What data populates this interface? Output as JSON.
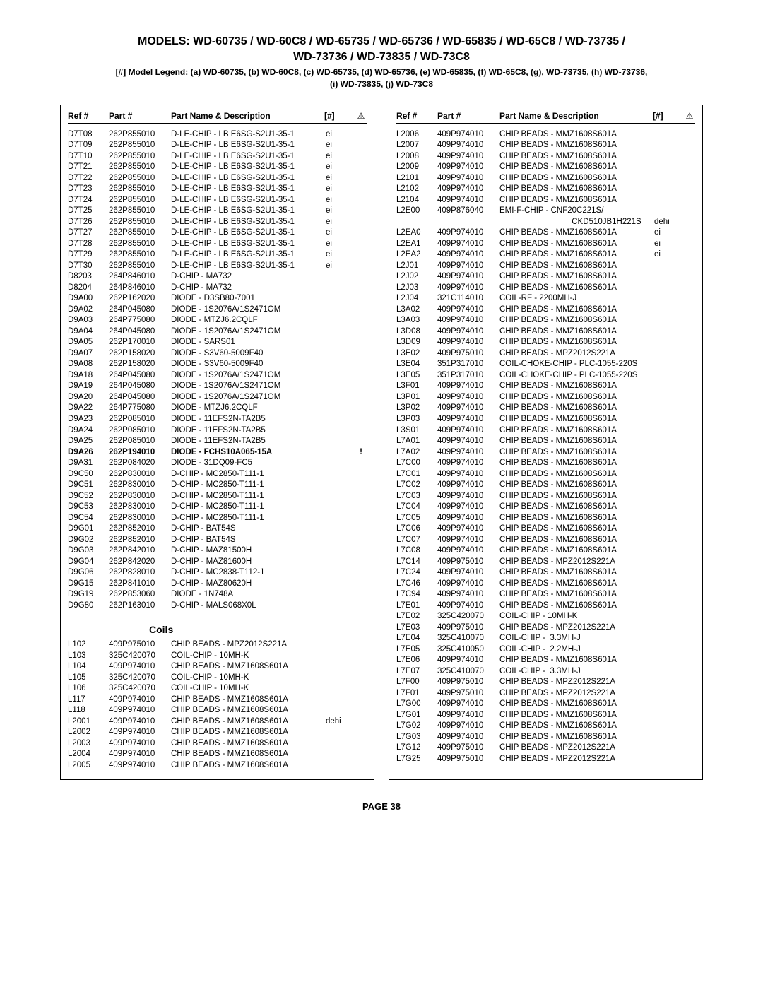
{
  "title_line1": "MODELS: WD-60735 / WD-60C8 / WD-65735 / WD-65736 / WD-65835 / WD-65C8 / WD-73735 /",
  "title_line2": "WD-73736  /  WD-73835 / WD-73C8",
  "legend_line1": "[#] Model Legend: (a) WD-60735, (b) WD-60C8, (c) WD-65735, (d) WD-65736, (e) WD-65835, (f) WD-65C8, (g), WD-73735, (h) WD-73736,",
  "legend_line2": "(i) WD-73835, (j) WD-73C8",
  "headers": {
    "ref": "Ref #",
    "part": "Part #",
    "desc": "Part Name & Description",
    "model": "[#]",
    "warn": "⚠"
  },
  "section_coils": "Coils",
  "page": "PAGE 38",
  "left_top": [
    {
      "r": "D7T08",
      "p": "262P855010",
      "d": "D-LE-CHIP - LB E6SG-S2U1-35-1",
      "m": "ei"
    },
    {
      "r": "D7T09",
      "p": "262P855010",
      "d": "D-LE-CHIP - LB E6SG-S2U1-35-1",
      "m": "ei"
    },
    {
      "r": "D7T10",
      "p": "262P855010",
      "d": "D-LE-CHIP - LB E6SG-S2U1-35-1",
      "m": "ei"
    },
    {
      "r": "D7T21",
      "p": "262P855010",
      "d": "D-LE-CHIP - LB E6SG-S2U1-35-1",
      "m": "ei"
    },
    {
      "r": "D7T22",
      "p": "262P855010",
      "d": "D-LE-CHIP - LB E6SG-S2U1-35-1",
      "m": "ei"
    },
    {
      "r": "D7T23",
      "p": "262P855010",
      "d": "D-LE-CHIP - LB E6SG-S2U1-35-1",
      "m": "ei"
    },
    {
      "r": "D7T24",
      "p": "262P855010",
      "d": "D-LE-CHIP - LB E6SG-S2U1-35-1",
      "m": "ei"
    },
    {
      "r": "D7T25",
      "p": "262P855010",
      "d": "D-LE-CHIP - LB E6SG-S2U1-35-1",
      "m": "ei"
    },
    {
      "r": "D7T26",
      "p": "262P855010",
      "d": "D-LE-CHIP - LB E6SG-S2U1-35-1",
      "m": "ei"
    },
    {
      "r": "D7T27",
      "p": "262P855010",
      "d": "D-LE-CHIP - LB E6SG-S2U1-35-1",
      "m": "ei"
    },
    {
      "r": "D7T28",
      "p": "262P855010",
      "d": "D-LE-CHIP - LB E6SG-S2U1-35-1",
      "m": "ei"
    },
    {
      "r": "D7T29",
      "p": "262P855010",
      "d": "D-LE-CHIP - LB E6SG-S2U1-35-1",
      "m": "ei"
    },
    {
      "r": "D7T30",
      "p": "262P855010",
      "d": "D-LE-CHIP - LB E6SG-S2U1-35-1",
      "m": "ei"
    },
    {
      "r": "D8203",
      "p": "264P846010",
      "d": "D-CHIP - MA732",
      "m": ""
    },
    {
      "r": "D8204",
      "p": "264P846010",
      "d": "D-CHIP - MA732",
      "m": ""
    },
    {
      "r": "D9A00",
      "p": "262P162020",
      "d": "DIODE - D3SB80-7001",
      "m": ""
    },
    {
      "r": "D9A02",
      "p": "264P045080",
      "d": "DIODE - 1S2076A/1S2471OM",
      "m": ""
    },
    {
      "r": "D9A03",
      "p": "264P775080",
      "d": "DIODE - MTZJ6.2CQLF",
      "m": ""
    },
    {
      "r": "D9A04",
      "p": "264P045080",
      "d": "DIODE - 1S2076A/1S2471OM",
      "m": ""
    },
    {
      "r": "D9A05",
      "p": "262P170010",
      "d": "DIODE - SARS01",
      "m": ""
    },
    {
      "r": "D9A07",
      "p": "262P158020",
      "d": "DIODE - S3V60-5009F40",
      "m": ""
    },
    {
      "r": "D9A08",
      "p": "262P158020",
      "d": "DIODE - S3V60-5009F40",
      "m": ""
    },
    {
      "r": "D9A18",
      "p": "264P045080",
      "d": "DIODE - 1S2076A/1S2471OM",
      "m": ""
    },
    {
      "r": "D9A19",
      "p": "264P045080",
      "d": "DIODE - 1S2076A/1S2471OM",
      "m": ""
    },
    {
      "r": "D9A20",
      "p": "264P045080",
      "d": "DIODE - 1S2076A/1S2471OM",
      "m": ""
    },
    {
      "r": "D9A22",
      "p": "264P775080",
      "d": "DIODE - MTZJ6.2CQLF",
      "m": ""
    },
    {
      "r": "D9A23",
      "p": "262P085010",
      "d": "DIODE - 11EFS2N-TA2B5",
      "m": ""
    },
    {
      "r": "D9A24",
      "p": "262P085010",
      "d": "DIODE - 11EFS2N-TA2B5",
      "m": ""
    },
    {
      "r": "D9A25",
      "p": "262P085010",
      "d": "DIODE - 11EFS2N-TA2B5",
      "m": ""
    },
    {
      "r": "D9A26",
      "p": "262P194010",
      "d": "DIODE - FCHS10A065-15A",
      "m": "",
      "w": "!",
      "b": true
    },
    {
      "r": "D9A31",
      "p": "262P084020",
      "d": "DIODE - 31DQ09-FC5",
      "m": ""
    },
    {
      "r": "D9C50",
      "p": "262P830010",
      "d": "D-CHIP - MC2850-T111-1",
      "m": ""
    },
    {
      "r": "D9C51",
      "p": "262P830010",
      "d": "D-CHIP - MC2850-T111-1",
      "m": ""
    },
    {
      "r": "D9C52",
      "p": "262P830010",
      "d": "D-CHIP - MC2850-T111-1",
      "m": ""
    },
    {
      "r": "D9C53",
      "p": "262P830010",
      "d": "D-CHIP - MC2850-T111-1",
      "m": ""
    },
    {
      "r": "D9C54",
      "p": "262P830010",
      "d": "D-CHIP - MC2850-T111-1",
      "m": ""
    },
    {
      "r": "D9G01",
      "p": "262P852010",
      "d": "D-CHIP - BAT54S",
      "m": ""
    },
    {
      "r": "D9G02",
      "p": "262P852010",
      "d": "D-CHIP - BAT54S",
      "m": ""
    },
    {
      "r": "D9G03",
      "p": "262P842010",
      "d": "D-CHIP - MAZ81500H",
      "m": ""
    },
    {
      "r": "D9G04",
      "p": "262P842020",
      "d": "D-CHIP - MAZ81600H",
      "m": ""
    },
    {
      "r": "D9G06",
      "p": "262P828010",
      "d": "D-CHIP - MC2838-T112-1",
      "m": ""
    },
    {
      "r": "D9G15",
      "p": "262P841010",
      "d": "D-CHIP - MAZ80620H",
      "m": ""
    },
    {
      "r": "D9G19",
      "p": "262P853060",
      "d": "DIODE - 1N748A",
      "m": ""
    },
    {
      "r": "D9G80",
      "p": "262P163010",
      "d": "D-CHIP - MALS068X0L",
      "m": ""
    }
  ],
  "left_coils": [
    {
      "r": "L102",
      "p": "409P975010",
      "d": "CHIP BEADS - MPZ2012S221A",
      "m": ""
    },
    {
      "r": "L103",
      "p": "325C420070",
      "d": "COIL-CHIP - 10MH-K",
      "m": ""
    },
    {
      "r": "L104",
      "p": "409P974010",
      "d": "CHIP BEADS - MMZ1608S601A",
      "m": ""
    },
    {
      "r": "L105",
      "p": "325C420070",
      "d": "COIL-CHIP - 10MH-K",
      "m": ""
    },
    {
      "r": "L106",
      "p": "325C420070",
      "d": "COIL-CHIP - 10MH-K",
      "m": ""
    },
    {
      "r": "L117",
      "p": "409P974010",
      "d": "CHIP BEADS - MMZ1608S601A",
      "m": ""
    },
    {
      "r": "L118",
      "p": "409P974010",
      "d": "CHIP BEADS - MMZ1608S601A",
      "m": ""
    },
    {
      "r": "L2001",
      "p": "409P974010",
      "d": "CHIP BEADS - MMZ1608S601A",
      "m": "dehi"
    },
    {
      "r": "L2002",
      "p": "409P974010",
      "d": "CHIP BEADS - MMZ1608S601A",
      "m": ""
    },
    {
      "r": "L2003",
      "p": "409P974010",
      "d": "CHIP BEADS - MMZ1608S601A",
      "m": ""
    },
    {
      "r": "L2004",
      "p": "409P974010",
      "d": "CHIP BEADS - MMZ1608S601A",
      "m": ""
    },
    {
      "r": "L2005",
      "p": "409P974010",
      "d": "CHIP BEADS - MMZ1608S601A",
      "m": ""
    }
  ],
  "right": [
    {
      "r": "L2006",
      "p": "409P974010",
      "d": "CHIP BEADS - MMZ1608S601A",
      "m": ""
    },
    {
      "r": "L2007",
      "p": "409P974010",
      "d": "CHIP BEADS - MMZ1608S601A",
      "m": ""
    },
    {
      "r": "L2008",
      "p": "409P974010",
      "d": "CHIP BEADS - MMZ1608S601A",
      "m": ""
    },
    {
      "r": "L2009",
      "p": "409P974010",
      "d": "CHIP BEADS - MMZ1608S601A",
      "m": ""
    },
    {
      "r": "L2101",
      "p": "409P974010",
      "d": "CHIP BEADS - MMZ1608S601A",
      "m": ""
    },
    {
      "r": "L2102",
      "p": "409P974010",
      "d": "CHIP BEADS - MMZ1608S601A",
      "m": ""
    },
    {
      "r": "L2104",
      "p": "409P974010",
      "d": "CHIP BEADS - MMZ1608S601A",
      "m": ""
    },
    {
      "r": "L2E00",
      "p": "409P876040",
      "d": "EMI-F-CHIP - CNF20C221S/",
      "m": ""
    },
    {
      "r": "",
      "p": "",
      "d": "                                CKD510JB1H221S",
      "m": "dehi"
    },
    {
      "r": "L2EA0",
      "p": "409P974010",
      "d": "CHIP BEADS - MMZ1608S601A",
      "m": "ei"
    },
    {
      "r": "L2EA1",
      "p": "409P974010",
      "d": "CHIP BEADS - MMZ1608S601A",
      "m": "ei"
    },
    {
      "r": "L2EA2",
      "p": "409P974010",
      "d": "CHIP BEADS - MMZ1608S601A",
      "m": "ei"
    },
    {
      "r": "L2J01",
      "p": "409P974010",
      "d": "CHIP BEADS - MMZ1608S601A",
      "m": ""
    },
    {
      "r": "L2J02",
      "p": "409P974010",
      "d": "CHIP BEADS - MMZ1608S601A",
      "m": ""
    },
    {
      "r": "L2J03",
      "p": "409P974010",
      "d": "CHIP BEADS - MMZ1608S601A",
      "m": ""
    },
    {
      "r": "L2J04",
      "p": "321C114010",
      "d": "COIL-RF - 2200MH-J",
      "m": ""
    },
    {
      "r": "L3A02",
      "p": "409P974010",
      "d": "CHIP BEADS - MMZ1608S601A",
      "m": ""
    },
    {
      "r": "L3A03",
      "p": "409P974010",
      "d": "CHIP BEADS - MMZ1608S601A",
      "m": ""
    },
    {
      "r": "L3D08",
      "p": "409P974010",
      "d": "CHIP BEADS - MMZ1608S601A",
      "m": ""
    },
    {
      "r": "L3D09",
      "p": "409P974010",
      "d": "CHIP BEADS - MMZ1608S601A",
      "m": ""
    },
    {
      "r": "L3E02",
      "p": "409P975010",
      "d": "CHIP BEADS - MPZ2012S221A",
      "m": ""
    },
    {
      "r": "L3E04",
      "p": "351P317010",
      "d": "COIL-CHOKE-CHIP - PLC-1055-220S",
      "m": ""
    },
    {
      "r": "L3E05",
      "p": "351P317010",
      "d": "COIL-CHOKE-CHIP - PLC-1055-220S",
      "m": ""
    },
    {
      "r": "L3F01",
      "p": "409P974010",
      "d": "CHIP BEADS - MMZ1608S601A",
      "m": ""
    },
    {
      "r": "L3P01",
      "p": "409P974010",
      "d": "CHIP BEADS - MMZ1608S601A",
      "m": ""
    },
    {
      "r": "L3P02",
      "p": "409P974010",
      "d": "CHIP BEADS - MMZ1608S601A",
      "m": ""
    },
    {
      "r": "L3P03",
      "p": "409P974010",
      "d": "CHIP BEADS - MMZ1608S601A",
      "m": ""
    },
    {
      "r": "L3S01",
      "p": "409P974010",
      "d": "CHIP BEADS - MMZ1608S601A",
      "m": ""
    },
    {
      "r": "L7A01",
      "p": "409P974010",
      "d": "CHIP BEADS - MMZ1608S601A",
      "m": ""
    },
    {
      "r": "L7A02",
      "p": "409P974010",
      "d": "CHIP BEADS - MMZ1608S601A",
      "m": ""
    },
    {
      "r": "L7C00",
      "p": "409P974010",
      "d": "CHIP BEADS - MMZ1608S601A",
      "m": ""
    },
    {
      "r": "L7C01",
      "p": "409P974010",
      "d": "CHIP BEADS - MMZ1608S601A",
      "m": ""
    },
    {
      "r": "L7C02",
      "p": "409P974010",
      "d": "CHIP BEADS - MMZ1608S601A",
      "m": ""
    },
    {
      "r": "L7C03",
      "p": "409P974010",
      "d": "CHIP BEADS - MMZ1608S601A",
      "m": ""
    },
    {
      "r": "L7C04",
      "p": "409P974010",
      "d": "CHIP BEADS - MMZ1608S601A",
      "m": ""
    },
    {
      "r": "L7C05",
      "p": "409P974010",
      "d": "CHIP BEADS - MMZ1608S601A",
      "m": ""
    },
    {
      "r": "L7C06",
      "p": "409P974010",
      "d": "CHIP BEADS - MMZ1608S601A",
      "m": ""
    },
    {
      "r": "L7C07",
      "p": "409P974010",
      "d": "CHIP BEADS - MMZ1608S601A",
      "m": ""
    },
    {
      "r": "L7C08",
      "p": "409P974010",
      "d": "CHIP BEADS - MMZ1608S601A",
      "m": ""
    },
    {
      "r": "L7C14",
      "p": "409P975010",
      "d": "CHIP BEADS - MPZ2012S221A",
      "m": ""
    },
    {
      "r": "L7C24",
      "p": "409P974010",
      "d": "CHIP BEADS - MMZ1608S601A",
      "m": ""
    },
    {
      "r": "L7C46",
      "p": "409P974010",
      "d": "CHIP BEADS - MMZ1608S601A",
      "m": ""
    },
    {
      "r": "L7C94",
      "p": "409P974010",
      "d": "CHIP BEADS - MMZ1608S601A",
      "m": ""
    },
    {
      "r": "L7E01",
      "p": "409P974010",
      "d": "CHIP BEADS - MMZ1608S601A",
      "m": ""
    },
    {
      "r": "L7E02",
      "p": "325C420070",
      "d": "COIL-CHIP - 10MH-K",
      "m": ""
    },
    {
      "r": "L7E03",
      "p": "409P975010",
      "d": "CHIP BEADS - MPZ2012S221A",
      "m": ""
    },
    {
      "r": "L7E04",
      "p": "325C410070",
      "d": "COIL-CHIP -  3.3MH-J",
      "m": ""
    },
    {
      "r": "L7E05",
      "p": "325C410050",
      "d": "COIL-CHIP -  2.2MH-J",
      "m": ""
    },
    {
      "r": "L7E06",
      "p": "409P974010",
      "d": "CHIP BEADS - MMZ1608S601A",
      "m": ""
    },
    {
      "r": "L7E07",
      "p": "325C410070",
      "d": "COIL-CHIP -  3.3MH-J",
      "m": ""
    },
    {
      "r": "L7F00",
      "p": "409P975010",
      "d": "CHIP BEADS - MPZ2012S221A",
      "m": ""
    },
    {
      "r": "L7F01",
      "p": "409P975010",
      "d": "CHIP BEADS - MPZ2012S221A",
      "m": ""
    },
    {
      "r": "L7G00",
      "p": "409P974010",
      "d": "CHIP BEADS - MMZ1608S601A",
      "m": ""
    },
    {
      "r": "L7G01",
      "p": "409P974010",
      "d": "CHIP BEADS - MMZ1608S601A",
      "m": ""
    },
    {
      "r": "L7G02",
      "p": "409P974010",
      "d": "CHIP BEADS - MMZ1608S601A",
      "m": ""
    },
    {
      "r": "L7G03",
      "p": "409P974010",
      "d": "CHIP BEADS - MMZ1608S601A",
      "m": ""
    },
    {
      "r": "L7G12",
      "p": "409P975010",
      "d": "CHIP BEADS - MPZ2012S221A",
      "m": ""
    },
    {
      "r": "L7G25",
      "p": "409P975010",
      "d": "CHIP BEADS - MPZ2012S221A",
      "m": ""
    }
  ]
}
